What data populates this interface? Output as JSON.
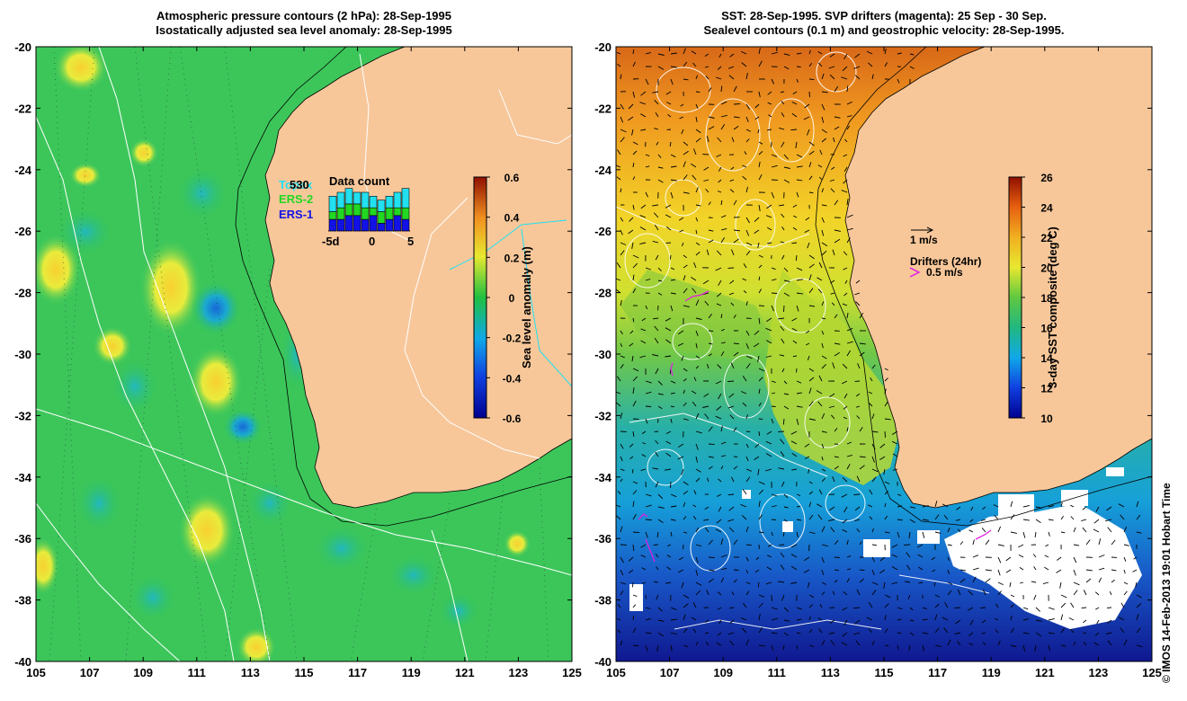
{
  "left_title": {
    "line1": "Atmospheric pressure contours (2 hPa): 28-Sep-1995",
    "line2": "Isostatically adjusted sea level anomaly: 28-Sep-1995"
  },
  "right_title": {
    "line1": "SST: 28-Sep-1995. SVP drifters (magenta): 25 Sep - 30 Sep.",
    "line2": "Sealevel contours (0.1 m) and geostrophic velocity: 28-Sep-1995."
  },
  "lat_labels": [
    "-20",
    "-22",
    "-24",
    "-26",
    "-28",
    "-30",
    "-32",
    "-34",
    "-36",
    "-38",
    "-40"
  ],
  "lon_labels": [
    "105",
    "107",
    "109",
    "111",
    "113",
    "115",
    "117",
    "119",
    "121",
    "123",
    "125"
  ],
  "left_colorbar": {
    "label": "Sea level anomaly (m)",
    "ticks": [
      "0.6",
      "0.4",
      "0.2",
      "0",
      "-0.2",
      "-0.4",
      "-0.6"
    ]
  },
  "right_colorbar": {
    "label": "3-day SST composite (deg C)",
    "ticks": [
      "26",
      "24",
      "22",
      "20",
      "18",
      "16",
      "14",
      "12",
      "10"
    ]
  },
  "legend": {
    "title": "Data count",
    "count": "530",
    "sat1": "Topex",
    "sat2": "ERS-2",
    "sat3": "ERS-1",
    "x_left": "-5d",
    "x_mid": "0",
    "x_right": "5"
  },
  "vector_legend": {
    "speed": "1 m/s",
    "drifters_title": "Drifters (24hr)",
    "drifter_speed": "0.5 m/s"
  },
  "credit": "© IMOS 14-Feb-2013 19:01 Hobart Time",
  "colors": {
    "land": "#f7c79a",
    "ocean_green": "#2fc25a",
    "sla_high": "#f5e63c",
    "sla_low": "#1aa8c8",
    "topex": "#22e0f0",
    "ers2": "#22d822",
    "ers1": "#1212e6",
    "drifter": "#e020e0"
  },
  "chart_data": {
    "type": "map",
    "panels": [
      {
        "name": "sea level anomaly",
        "lon_range": [
          105,
          125
        ],
        "lat_range": [
          -40,
          -20
        ],
        "colorbar_range": [
          -0.6,
          0.6
        ],
        "units": "m"
      },
      {
        "name": "SST",
        "lon_range": [
          105,
          125
        ],
        "lat_range": [
          -40,
          -20
        ],
        "colorbar_range": [
          10,
          26
        ],
        "units": "deg C"
      }
    ],
    "data_count_bars": [
      {
        "day": -5,
        "ers1": 3,
        "ers2": 2,
        "topex": 4
      },
      {
        "day": -4,
        "ers1": 3,
        "ers2": 3,
        "topex": 4
      },
      {
        "day": -3,
        "ers1": 4,
        "ers2": 3,
        "topex": 4
      },
      {
        "day": -2,
        "ers1": 4,
        "ers2": 3,
        "topex": 3
      },
      {
        "day": -1,
        "ers1": 3,
        "ers2": 3,
        "topex": 4
      },
      {
        "day": 0,
        "ers1": 4,
        "ers2": 2,
        "topex": 3
      },
      {
        "day": 1,
        "ers1": 2,
        "ers2": 3,
        "topex": 3
      },
      {
        "day": 2,
        "ers1": 3,
        "ers2": 3,
        "topex": 3
      },
      {
        "day": 3,
        "ers1": 4,
        "ers2": 2,
        "topex": 4
      },
      {
        "day": 4,
        "ers1": 3,
        "ers2": 3,
        "topex": 5
      }
    ]
  }
}
